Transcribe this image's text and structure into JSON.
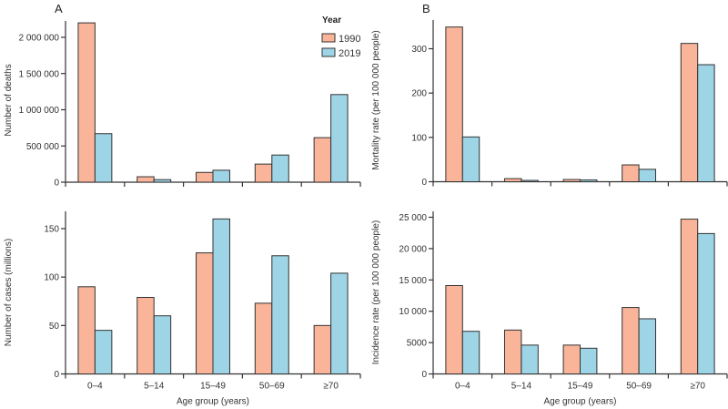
{
  "chart_data": [
    {
      "panel": "A",
      "position": "top-left",
      "type": "bar",
      "title": "",
      "xlabel": "",
      "ylabel": "Number of deaths",
      "categories": [
        "0–4",
        "5–14",
        "15–49",
        "50–69",
        "≥70"
      ],
      "show_category_labels": false,
      "yticks": [
        0,
        500000,
        1000000,
        1500000,
        2000000
      ],
      "ytick_labels": [
        "0",
        "500 000",
        "1 000 000",
        "1 500 000",
        "2 000 000"
      ],
      "ylim": [
        0,
        2250000
      ],
      "grid": false,
      "legend": {
        "title": "Year",
        "placement": "top-right",
        "entries": [
          "1990",
          "2019"
        ]
      },
      "series": [
        {
          "name": "1990",
          "color": "#F9B49A",
          "values": [
            2200000,
            75000,
            135000,
            250000,
            615000
          ]
        },
        {
          "name": "2019",
          "color": "#9DD4E6",
          "values": [
            670000,
            35000,
            165000,
            375000,
            1210000
          ]
        }
      ]
    },
    {
      "panel": "B",
      "position": "top-right",
      "type": "bar",
      "title": "",
      "xlabel": "",
      "ylabel": "Mortality rate (per 100 000 people)",
      "categories": [
        "0–4",
        "5–14",
        "15–49",
        "50–69",
        "≥70"
      ],
      "show_category_labels": false,
      "yticks": [
        0,
        100,
        200,
        300
      ],
      "ytick_labels": [
        "0",
        "100",
        "200",
        "300"
      ],
      "ylim": [
        0,
        365
      ],
      "grid": false,
      "series": [
        {
          "name": "1990",
          "color": "#F9B49A",
          "values": [
            349,
            7,
            5,
            38,
            312
          ]
        },
        {
          "name": "2019",
          "color": "#9DD4E6",
          "values": [
            101,
            3,
            4,
            28,
            264
          ]
        }
      ]
    },
    {
      "panel": "",
      "position": "bottom-left",
      "type": "bar",
      "title": "",
      "xlabel": "Age group (years)",
      "ylabel": "Number of cases (millions)",
      "categories": [
        "0–4",
        "5–14",
        "15–49",
        "50–69",
        "≥70"
      ],
      "show_category_labels": true,
      "yticks": [
        0,
        50,
        100,
        150
      ],
      "ytick_labels": [
        "0",
        "50",
        "100",
        "150"
      ],
      "ylim": [
        0,
        168
      ],
      "grid": false,
      "series": [
        {
          "name": "1990",
          "color": "#F9B49A",
          "values": [
            90,
            79,
            125,
            73,
            50
          ]
        },
        {
          "name": "2019",
          "color": "#9DD4E6",
          "values": [
            45,
            60,
            160,
            122,
            104
          ]
        }
      ]
    },
    {
      "panel": "",
      "position": "bottom-right",
      "type": "bar",
      "title": "",
      "xlabel": "Age group (years)",
      "ylabel": "Incidence rate (per 100 000 people)",
      "categories": [
        "0–4",
        "5–14",
        "15–49",
        "50–69",
        "≥70"
      ],
      "show_category_labels": true,
      "yticks": [
        0,
        5000,
        10000,
        15000,
        20000,
        25000
      ],
      "ytick_labels": [
        "0",
        "5000",
        "10 000",
        "15 000",
        "20 000",
        "25 000"
      ],
      "ylim": [
        0,
        25500
      ],
      "grid": false,
      "series": [
        {
          "name": "1990",
          "color": "#F9B49A",
          "values": [
            14100,
            7000,
            4600,
            10600,
            24700
          ]
        },
        {
          "name": "2019",
          "color": "#9DD4E6",
          "values": [
            6800,
            4600,
            4100,
            8800,
            22400
          ]
        }
      ]
    }
  ]
}
